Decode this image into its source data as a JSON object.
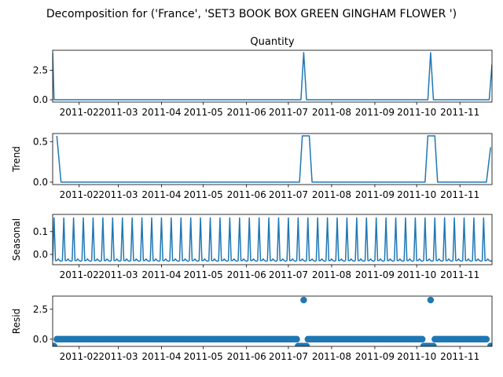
{
  "chart_data": {
    "type": "line",
    "suptitle": "Decomposition for ('France', 'SET3 BOOK BOX GREEN GINGHAM FLOWER ')",
    "color": "#1f77b4",
    "x_range": [
      "2011-01-13",
      "2011-11-24"
    ],
    "x_ticks": [
      "2011-02-01",
      "2011-03-01",
      "2011-04-01",
      "2011-05-01",
      "2011-06-01",
      "2011-07-01",
      "2011-08-01",
      "2011-09-01",
      "2011-10-01",
      "2011-11-01"
    ],
    "x_tick_labels": [
      "2011-02",
      "2011-03",
      "2011-04",
      "2011-05",
      "2011-06",
      "2011-07",
      "2011-08",
      "2011-09",
      "2011-10",
      "2011-11"
    ],
    "panels": [
      {
        "key": "quantity",
        "type": "line",
        "title": "Quantity",
        "ylabel": "",
        "ylim": [
          -0.2,
          4.2
        ],
        "yticks": [
          0.0,
          2.5
        ],
        "ytick_labels": [
          "0.0",
          "2.5"
        ],
        "points": [
          {
            "x": "2011-01-13",
            "y": 4
          },
          {
            "x": "2011-01-14",
            "y": 0
          },
          {
            "x": "2011-07-10",
            "y": 0
          },
          {
            "x": "2011-07-12",
            "y": 4
          },
          {
            "x": "2011-07-14",
            "y": 0
          },
          {
            "x": "2011-10-09",
            "y": 0
          },
          {
            "x": "2011-10-11",
            "y": 4
          },
          {
            "x": "2011-10-13",
            "y": 0
          },
          {
            "x": "2011-11-22",
            "y": 0
          },
          {
            "x": "2011-11-24",
            "y": 3
          }
        ]
      },
      {
        "key": "trend",
        "type": "line",
        "title": "",
        "ylabel": "Trend",
        "ylim": [
          -0.03,
          0.6
        ],
        "yticks": [
          0.0,
          0.5
        ],
        "ytick_labels": [
          "0.0",
          "0.5"
        ],
        "points": [
          {
            "x": "2011-01-16",
            "y": 0.571
          },
          {
            "x": "2011-01-19",
            "y": 0
          },
          {
            "x": "2011-07-09",
            "y": 0
          },
          {
            "x": "2011-07-11",
            "y": 0.571
          },
          {
            "x": "2011-07-16",
            "y": 0.571
          },
          {
            "x": "2011-07-18",
            "y": 0
          },
          {
            "x": "2011-10-07",
            "y": 0
          },
          {
            "x": "2011-10-09",
            "y": 0.571
          },
          {
            "x": "2011-10-14",
            "y": 0.571
          },
          {
            "x": "2011-10-16",
            "y": 0
          },
          {
            "x": "2011-11-20",
            "y": 0
          },
          {
            "x": "2011-11-23",
            "y": 0.43
          }
        ]
      },
      {
        "key": "seasonal",
        "type": "line",
        "title": "",
        "ylabel": "Seasonal",
        "ylim": [
          -0.045,
          0.175
        ],
        "yticks": [
          0.0,
          0.1
        ],
        "ytick_labels": [
          "0.0",
          "0.1"
        ],
        "period_days": 7,
        "weekly_pattern": [
          -0.027,
          0.16,
          -0.027,
          -0.027,
          -0.02,
          -0.027,
          -0.03
        ],
        "start": "2011-01-13",
        "end": "2011-11-24"
      },
      {
        "key": "resid",
        "type": "scatter",
        "title": "",
        "ylabel": "Resid",
        "ylim": [
          -0.6,
          3.6
        ],
        "yticks": [
          0.0,
          2.5
        ],
        "ytick_labels": [
          "0.0",
          "2.5"
        ],
        "base_value": 0.0,
        "start": "2011-01-16",
        "end": "2011-11-20",
        "special_points": [
          {
            "x": "2011-01-14",
            "y": -0.57
          },
          {
            "x": "2011-07-08",
            "y": -0.57
          },
          {
            "x": "2011-07-09",
            "y": -0.57
          },
          {
            "x": "2011-07-10",
            "y": -0.57
          },
          {
            "x": "2011-07-11",
            "y": -0.57
          },
          {
            "x": "2011-07-12",
            "y": 3.27
          },
          {
            "x": "2011-07-13",
            "y": -0.57
          },
          {
            "x": "2011-07-14",
            "y": -0.57
          },
          {
            "x": "2011-10-06",
            "y": -0.57
          },
          {
            "x": "2011-10-07",
            "y": -0.57
          },
          {
            "x": "2011-10-08",
            "y": -0.57
          },
          {
            "x": "2011-10-09",
            "y": -0.57
          },
          {
            "x": "2011-10-10",
            "y": -0.57
          },
          {
            "x": "2011-10-11",
            "y": 3.27
          },
          {
            "x": "2011-10-12",
            "y": -0.57
          },
          {
            "x": "2011-10-13",
            "y": -0.57
          },
          {
            "x": "2011-11-23",
            "y": -0.57
          }
        ]
      }
    ]
  }
}
